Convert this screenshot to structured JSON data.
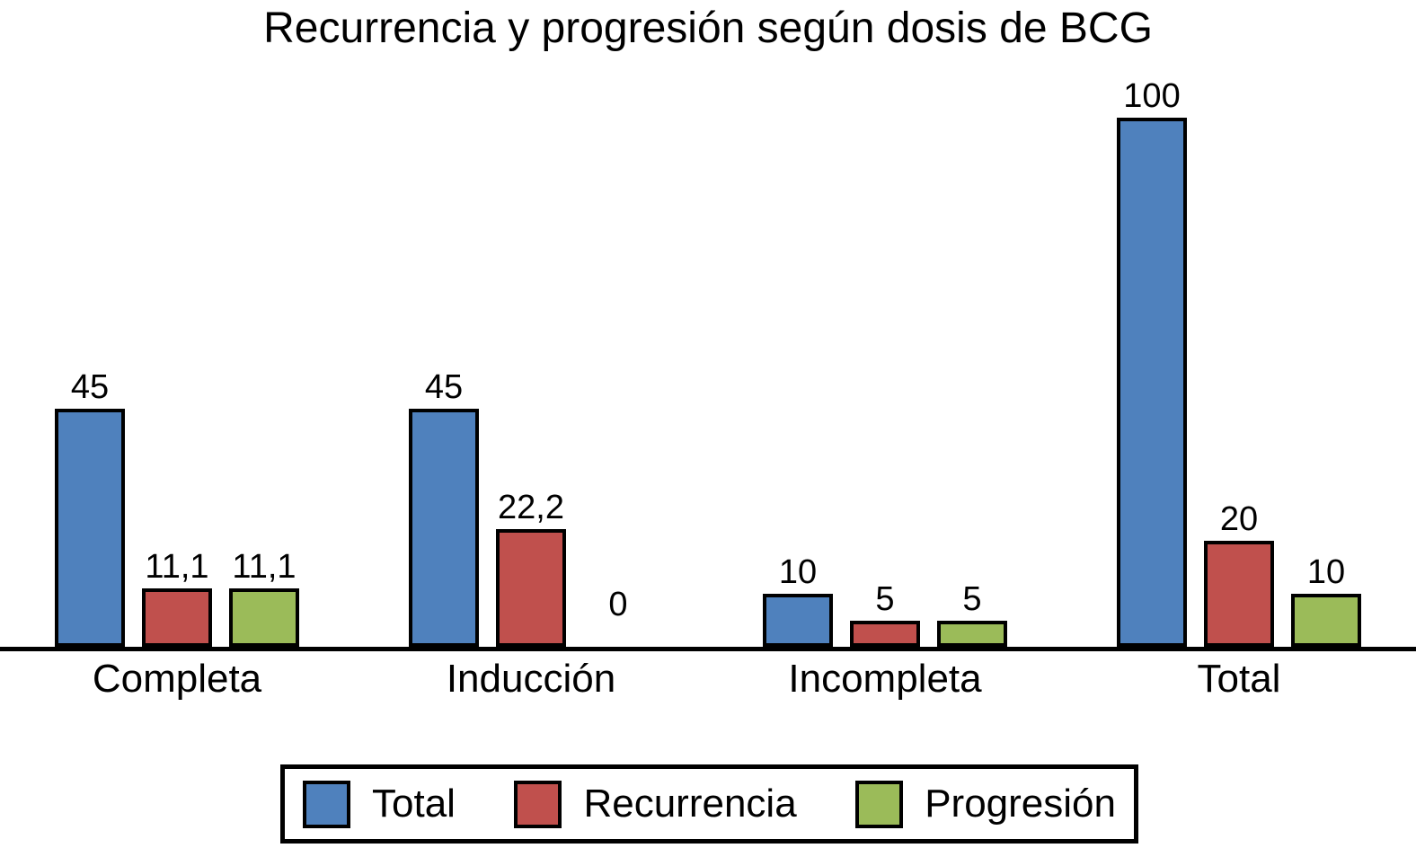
{
  "chart_data": {
    "type": "bar",
    "title": "Recurrencia y progresión según dosis de BCG",
    "categories": [
      "Completa",
      "Inducción",
      "Incompleta",
      "Total"
    ],
    "series": [
      {
        "name": "Total",
        "color": "#4F81BD",
        "values": [
          45,
          45,
          10,
          100
        ],
        "value_labels": [
          "45",
          "45",
          "10",
          "100"
        ]
      },
      {
        "name": "Recurrencia",
        "color": "#C0504D",
        "values": [
          11.1,
          22.2,
          5,
          20
        ],
        "value_labels": [
          "11,1",
          "22,2",
          "5",
          "20"
        ]
      },
      {
        "name": "Progresión",
        "color": "#9BBB59",
        "values": [
          11.1,
          0,
          5,
          10
        ],
        "value_labels": [
          "11,1",
          "0",
          "5",
          "10"
        ]
      }
    ],
    "xlabel": "",
    "ylabel": "",
    "ylim": [
      0,
      105
    ],
    "grid": false,
    "y_axis_visible": false,
    "value_labels_shown": true,
    "decimal_separator": ",",
    "bar_outline_color": "#000000",
    "axis_line_color": "#000000",
    "legend_position": "bottom",
    "legend_entries": [
      "Total",
      "Recurrencia",
      "Progresión"
    ]
  }
}
